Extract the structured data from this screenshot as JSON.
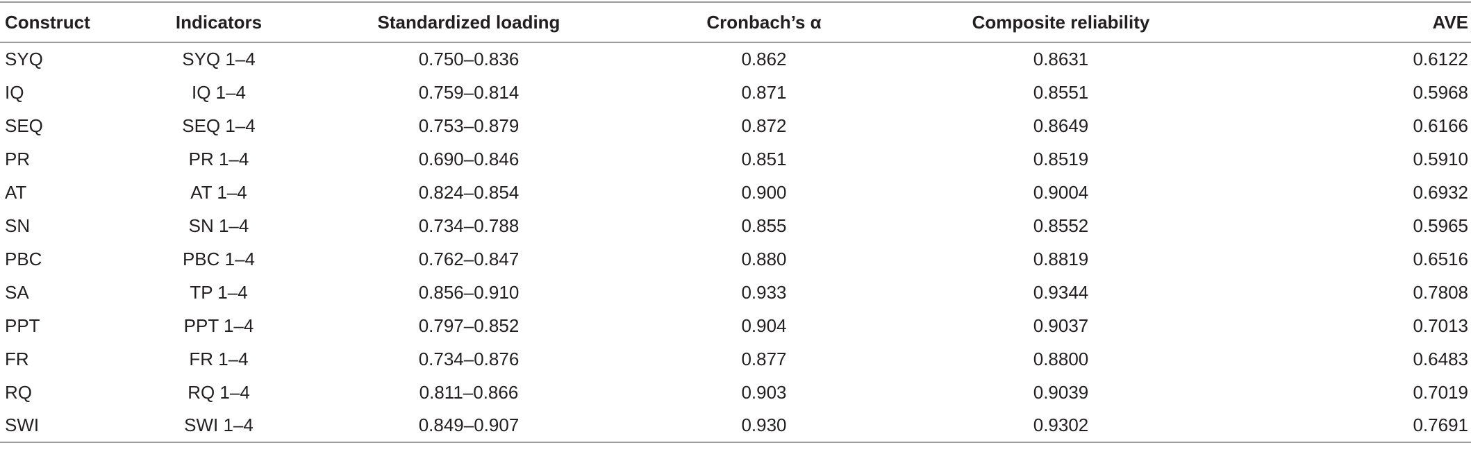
{
  "table": {
    "headers": [
      "Construct",
      "Indicators",
      "Standardized loading",
      "Cronbach’s α",
      "Composite reliability",
      "AVE"
    ],
    "rows": [
      [
        "SYQ",
        "SYQ 1–4",
        "0.750–0.836",
        "0.862",
        "0.8631",
        "0.6122"
      ],
      [
        "IQ",
        "IQ 1–4",
        "0.759–0.814",
        "0.871",
        "0.8551",
        "0.5968"
      ],
      [
        "SEQ",
        "SEQ 1–4",
        "0.753–0.879",
        "0.872",
        "0.8649",
        "0.6166"
      ],
      [
        "PR",
        "PR 1–4",
        "0.690–0.846",
        "0.851",
        "0.8519",
        "0.5910"
      ],
      [
        "AT",
        "AT 1–4",
        "0.824–0.854",
        "0.900",
        "0.9004",
        "0.6932"
      ],
      [
        "SN",
        "SN 1–4",
        "0.734–0.788",
        "0.855",
        "0.8552",
        "0.5965"
      ],
      [
        "PBC",
        "PBC 1–4",
        "0.762–0.847",
        "0.880",
        "0.8819",
        "0.6516"
      ],
      [
        "SA",
        "TP 1–4",
        "0.856–0.910",
        "0.933",
        "0.9344",
        "0.7808"
      ],
      [
        "PPT",
        "PPT 1–4",
        "0.797–0.852",
        "0.904",
        "0.9037",
        "0.7013"
      ],
      [
        "FR",
        "FR 1–4",
        "0.734–0.876",
        "0.877",
        "0.8800",
        "0.6483"
      ],
      [
        "RQ",
        "RQ 1–4",
        "0.811–0.866",
        "0.903",
        "0.9039",
        "0.7019"
      ],
      [
        "SWI",
        "SWI 1–4",
        "0.849–0.907",
        "0.930",
        "0.9302",
        "0.7691"
      ]
    ]
  }
}
